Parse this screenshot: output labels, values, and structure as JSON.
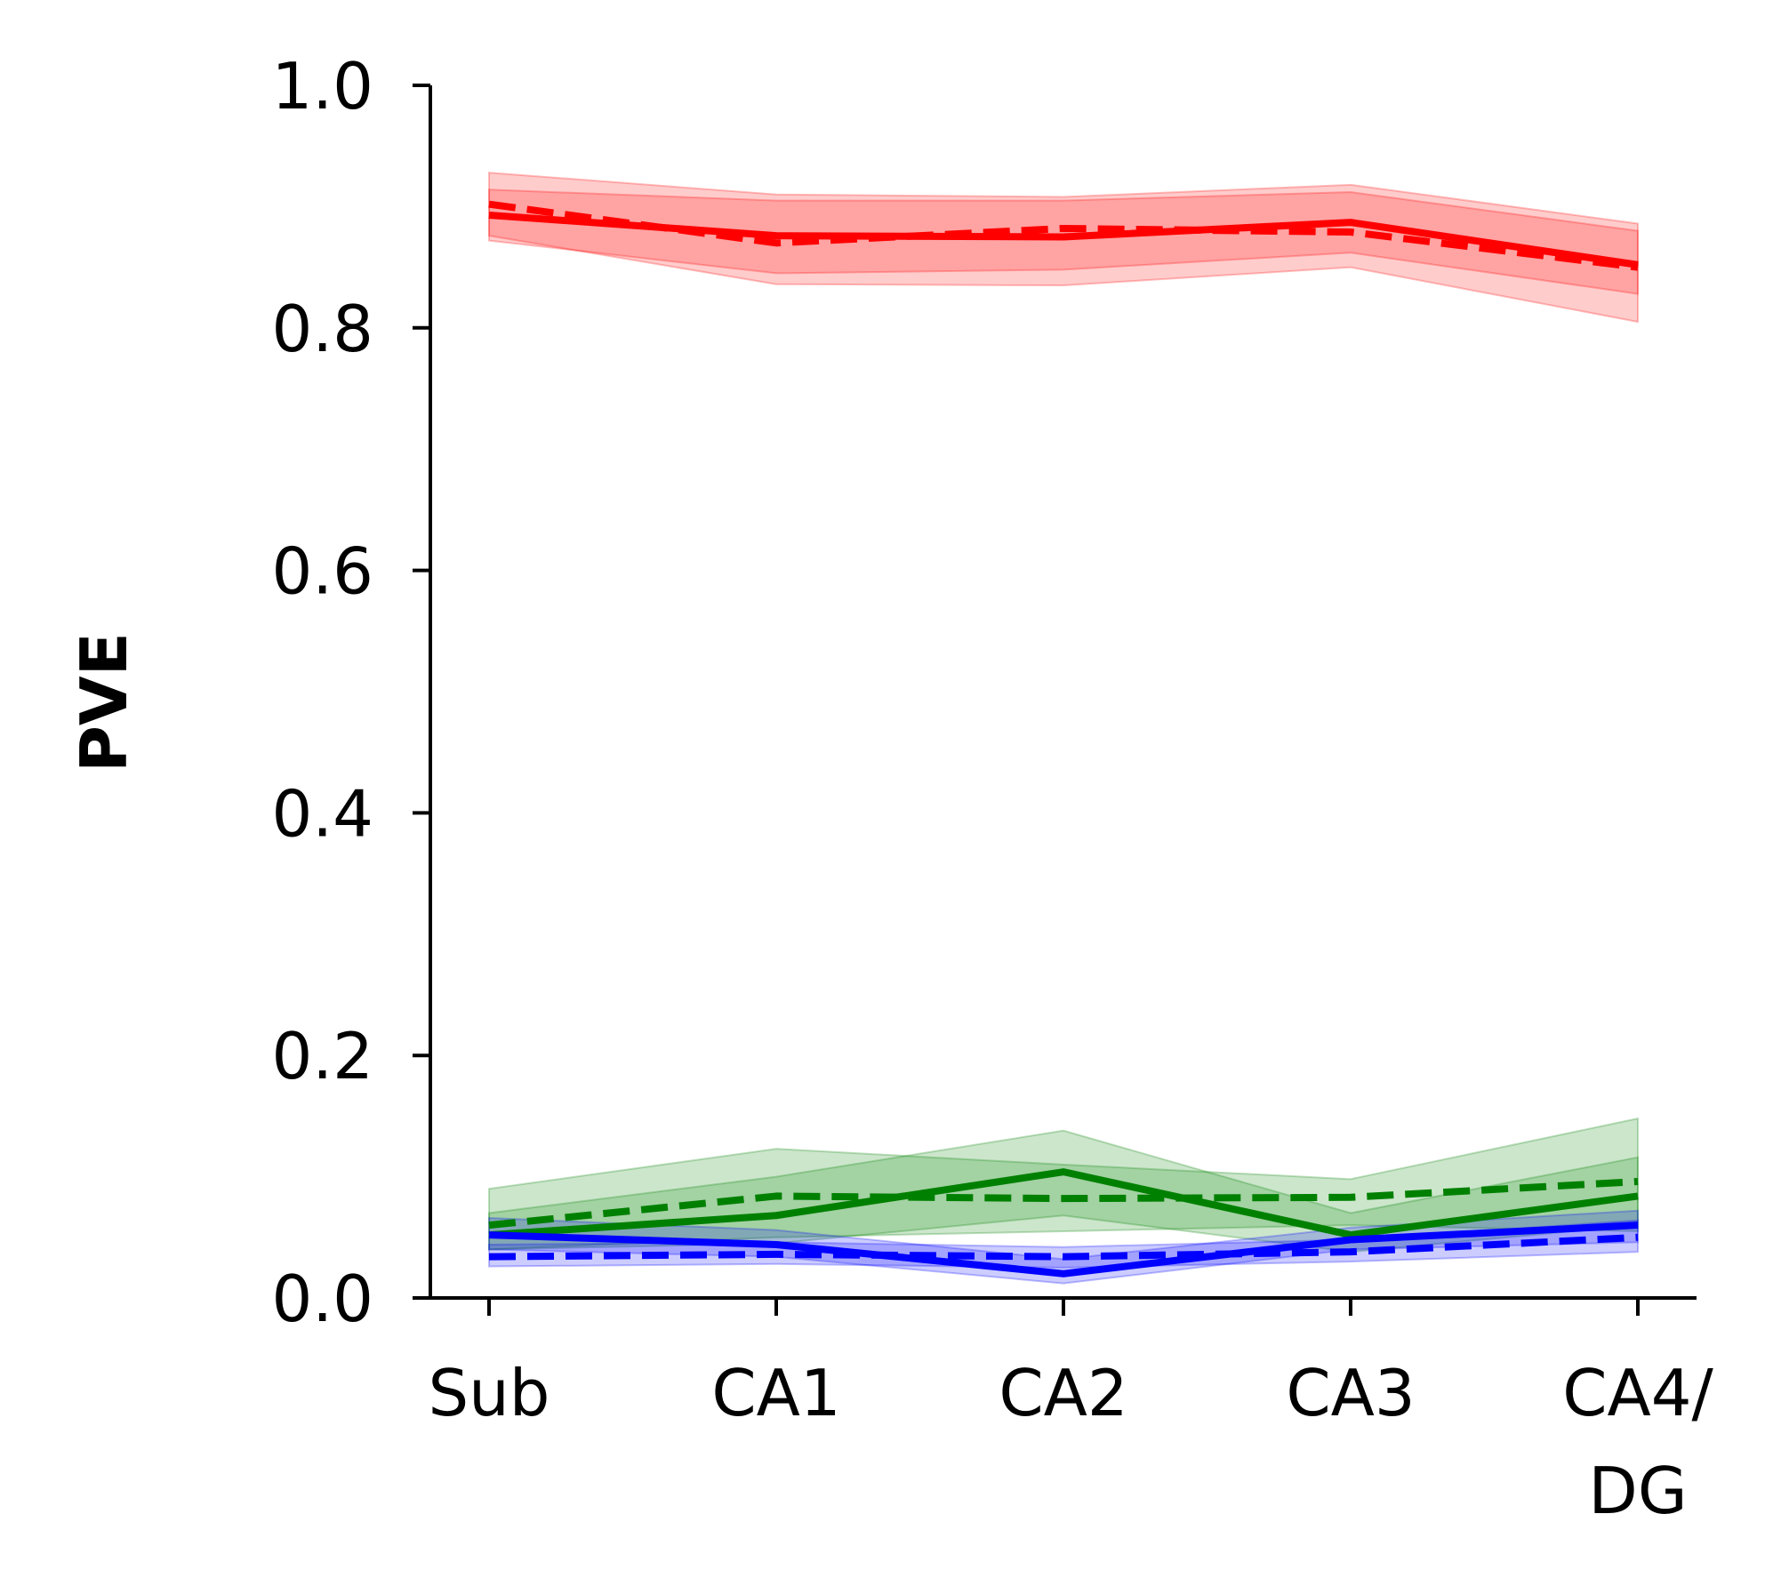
{
  "chart_data": {
    "type": "line",
    "title": "",
    "xlabel": "",
    "ylabel": "PVE",
    "categories": [
      "Sub",
      "CA1",
      "CA2",
      "CA3",
      "CA4/\nDG"
    ],
    "ylim": [
      0,
      1.0
    ],
    "yticks": [
      "0.0",
      "0.2",
      "0.4",
      "0.6",
      "0.8",
      "1.0"
    ],
    "grid": false,
    "legend": "none",
    "series": [
      {
        "color": "#ff0000",
        "style": "solid",
        "values": [
          0.893,
          0.876,
          0.875,
          0.887,
          0.852
        ],
        "band_low": [
          0.872,
          0.845,
          0.848,
          0.862,
          0.828
        ],
        "band_high": [
          0.914,
          0.905,
          0.905,
          0.912,
          0.88
        ]
      },
      {
        "color": "#ff0000",
        "style": "dashed",
        "values": [
          0.902,
          0.87,
          0.882,
          0.879,
          0.85
        ],
        "band_low": [
          0.876,
          0.836,
          0.835,
          0.85,
          0.805
        ],
        "band_high": [
          0.928,
          0.91,
          0.908,
          0.918,
          0.886
        ]
      },
      {
        "color": "#008000",
        "style": "solid",
        "values": [
          0.052,
          0.068,
          0.104,
          0.052,
          0.084
        ],
        "band_low": [
          0.04,
          0.045,
          0.068,
          0.038,
          0.06
        ],
        "band_high": [
          0.07,
          0.1,
          0.138,
          0.07,
          0.116
        ]
      },
      {
        "color": "#008000",
        "style": "dashed",
        "values": [
          0.06,
          0.084,
          0.082,
          0.083,
          0.096
        ],
        "band_low": [
          0.04,
          0.05,
          0.055,
          0.06,
          0.055
        ],
        "band_high": [
          0.09,
          0.123,
          0.11,
          0.098,
          0.148
        ]
      },
      {
        "color": "#0000ff",
        "style": "solid",
        "values": [
          0.052,
          0.044,
          0.02,
          0.048,
          0.06
        ],
        "band_low": [
          0.04,
          0.034,
          0.012,
          0.04,
          0.046
        ],
        "band_high": [
          0.066,
          0.056,
          0.032,
          0.058,
          0.072
        ]
      },
      {
        "color": "#0000ff",
        "style": "dashed",
        "values": [
          0.034,
          0.036,
          0.034,
          0.038,
          0.05
        ],
        "band_low": [
          0.026,
          0.028,
          0.025,
          0.03,
          0.038
        ],
        "band_high": [
          0.044,
          0.046,
          0.042,
          0.048,
          0.064
        ]
      }
    ]
  }
}
